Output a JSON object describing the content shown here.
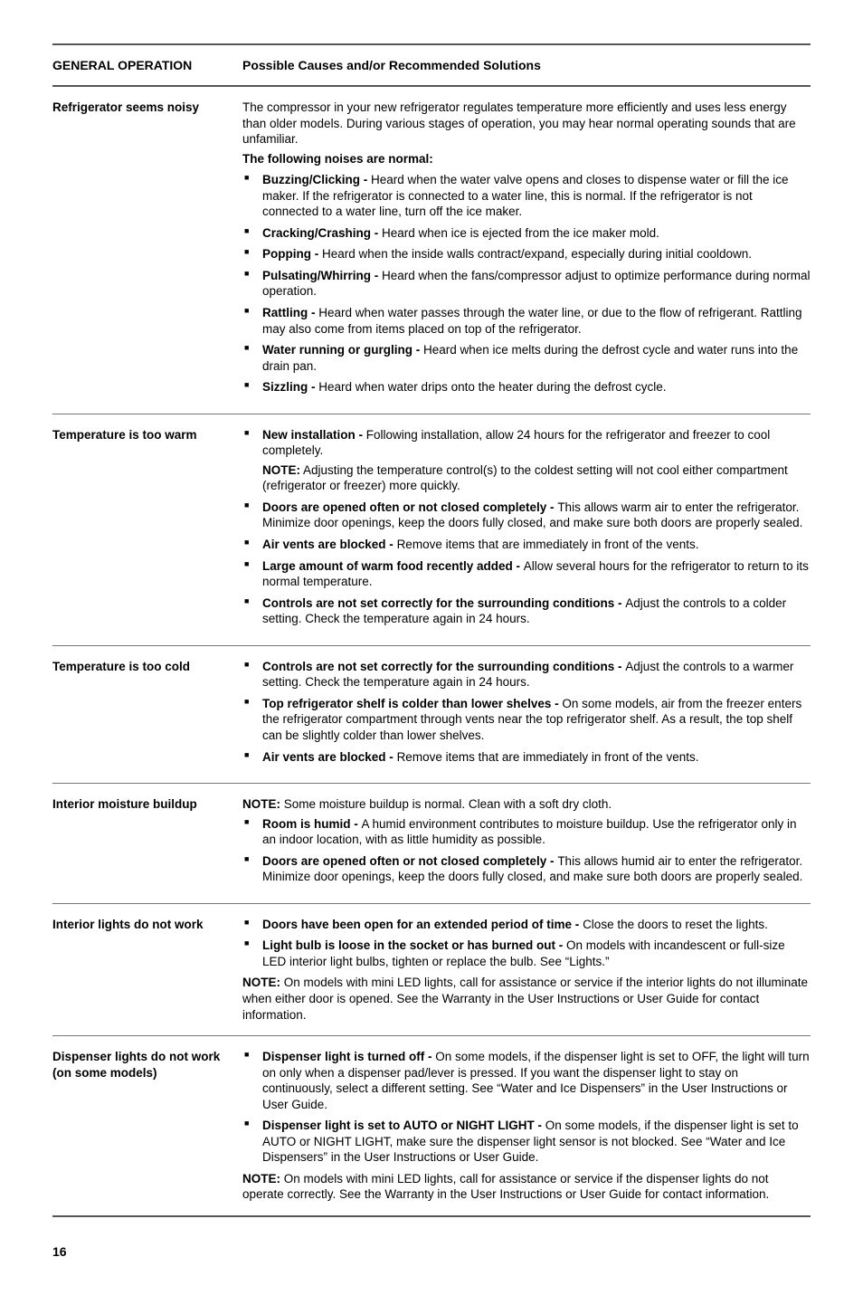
{
  "header": {
    "left": "GENERAL OPERATION",
    "right": "Possible Causes and/or Recommended Solutions"
  },
  "pageNumber": "16",
  "s1": {
    "title": "Refrigerator seems noisy",
    "intro": "The compressor in your new refrigerator regulates temperature more efficiently and uses less energy than older models. During various stages of operation, you may hear normal operating sounds that are unfamiliar.",
    "lead": "The following noises are normal:",
    "b1b": "Buzzing/Clicking - ",
    "b1t": "Heard when the water valve opens and closes to dispense water or fill the ice maker. If the refrigerator is connected to a water line, this is normal. If the refrigerator is not connected to a water line, turn off the ice maker.",
    "b2b": "Cracking/Crashing - ",
    "b2t": "Heard when ice is ejected from the ice maker mold.",
    "b3b": "Popping - ",
    "b3t": "Heard when the inside walls contract/expand, especially during initial cooldown.",
    "b4b": "Pulsating/Whirring - ",
    "b4t": "Heard when the fans/compressor adjust to optimize performance during normal operation.",
    "b5b": "Rattling - ",
    "b5t": "Heard when water passes through the water line, or due to the flow of refrigerant. Rattling may also come from items placed on top of the refrigerator.",
    "b6b": "Water running or gurgling - ",
    "b6t": "Heard when ice melts during the defrost cycle and water runs into the drain pan.",
    "b7b": "Sizzling - ",
    "b7t": "Heard when water drips onto the heater during the defrost cycle."
  },
  "s2": {
    "title": "Temperature is too warm",
    "b1b": "New installation - ",
    "b1t": "Following installation, allow 24 hours for the refrigerator and freezer to cool completely.",
    "noteLbl": "NOTE:",
    "noteTxt": " Adjusting the temperature control(s) to the coldest setting will not cool either compartment (refrigerator or freezer) more quickly.",
    "b2b": "Doors are opened often or not closed completely - ",
    "b2t": "This allows warm air to enter the refrigerator. Minimize door openings, keep the doors fully closed, and make sure both doors are properly sealed.",
    "b3b": "Air vents are blocked - ",
    "b3t": "Remove items that are immediately in front of the vents.",
    "b4b": "Large amount of warm food recently added - ",
    "b4t": "Allow several hours for the refrigerator to return to its normal temperature.",
    "b5b": "Controls are not set correctly for the surrounding conditions - ",
    "b5t": "Adjust the controls to a colder setting. Check the temperature again in 24 hours."
  },
  "s3": {
    "title": "Temperature is too cold",
    "b1b": "Controls are not set correctly for the surrounding conditions - ",
    "b1t": "Adjust the controls to a warmer setting. Check the temperature again in 24 hours.",
    "b2b": "Top refrigerator shelf is colder than lower shelves - ",
    "b2t": "On some models, air from the freezer enters the refrigerator compartment through vents near the top refrigerator shelf. As a result, the top shelf can be slightly colder than lower shelves.",
    "b3b": "Air vents are blocked - ",
    "b3t": "Remove items that are immediately in front of the vents."
  },
  "s4": {
    "title": "Interior moisture buildup",
    "noteLbl": "NOTE:",
    "noteTxt": " Some moisture buildup is normal. Clean with a soft dry cloth.",
    "b1b": "Room is humid - ",
    "b1t": "A humid environment contributes to moisture buildup. Use the refrigerator only in an indoor location, with as little humidity as possible.",
    "b2b": "Doors are opened often or not closed completely - ",
    "b2t": "This allows humid air to enter the refrigerator. Minimize door openings, keep the doors fully closed, and make sure both doors are properly sealed."
  },
  "s5": {
    "title": "Interior lights do not work",
    "b1b": "Doors have been open for an extended period of time - ",
    "b1t": "Close the doors to reset the lights.",
    "b2b": "Light bulb is loose in the socket or has burned out - ",
    "b2t": "On models with incandescent or full-size LED interior light bulbs, tighten or replace the bulb. See “Lights.”",
    "noteLbl": "NOTE:",
    "noteTxt": " On models with mini LED lights, call for assistance or service if the interior lights do not illuminate when either door is opened. See the Warranty in the User Instructions or User Guide for contact information."
  },
  "s6": {
    "title": "Dispenser lights do not work (on some models)",
    "b1b": "Dispenser light is turned off - ",
    "b1t": "On some models, if the dispenser light is set to OFF, the light will turn on only when a dispenser pad/lever is pressed. If you want the dispenser light to stay on continuously, select a different setting. See “Water and Ice Dispensers” in the User Instructions or User Guide.",
    "b2b": "Dispenser light is set to AUTO or NIGHT LIGHT - ",
    "b2t": "On some models, if the dispenser light is set to AUTO or NIGHT LIGHT, make sure the dispenser light sensor is not blocked. See “Water and Ice Dispensers” in the User Instructions or User Guide.",
    "noteLbl": "NOTE:",
    "noteTxt": " On models with mini LED lights, call for assistance or service if the dispenser lights do not operate correctly. See the Warranty in the User Instructions or User Guide for contact information."
  }
}
